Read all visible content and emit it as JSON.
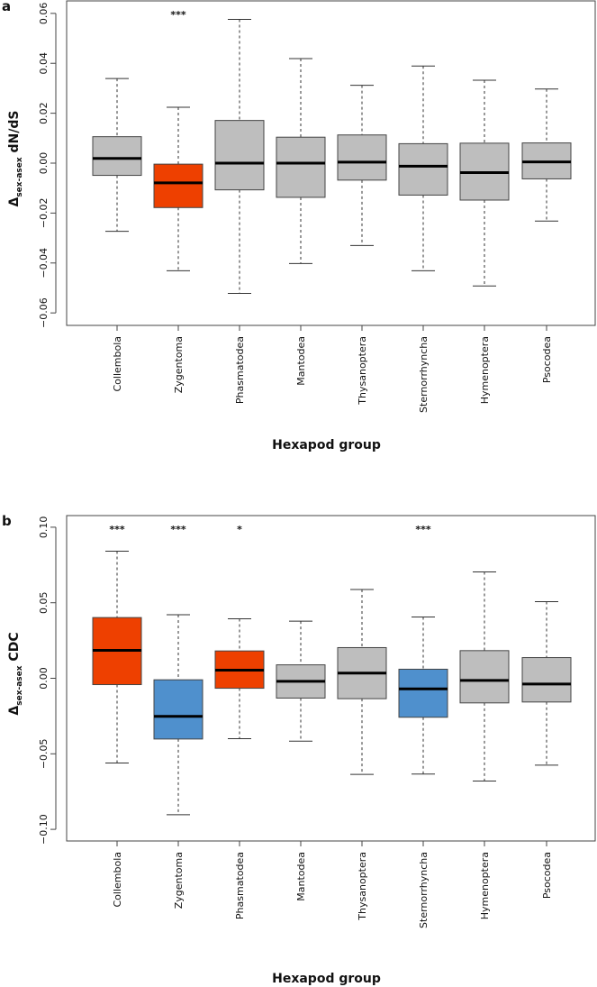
{
  "colors": {
    "gray": "#bebebe",
    "orange": "#ee4000",
    "blue": "#4f90cd"
  },
  "chart_data": [
    {
      "type": "boxplot",
      "panel_label": "a",
      "ylabel_main": "Δ",
      "ylabel_sub": "sex-asex",
      "ylabel_rest": " dN/dS",
      "xlabel": "Hexapod group",
      "ylim": [
        -0.065,
        0.065
      ],
      "yticks": [
        -0.06,
        -0.04,
        -0.02,
        0.0,
        0.02,
        0.04,
        0.06
      ],
      "ytick_labels": [
        "−0.06",
        "−0.04",
        "−0.02",
        "0.00",
        "0.02",
        "0.04",
        "0.06"
      ],
      "categories": [
        "Collembola",
        "Zygentoma",
        "Phasmatodea",
        "Mantodea",
        "Thysanoptera",
        "Sternorrhyncha",
        "Hymenoptera",
        "Psocodea"
      ],
      "boxes": [
        {
          "low": -0.0273,
          "q1": -0.0049,
          "median": 0.0019,
          "q3": 0.0106,
          "high": 0.0339,
          "color": "gray",
          "sig": ""
        },
        {
          "low": -0.0431,
          "q1": -0.0178,
          "median": -0.0079,
          "q3": -0.0004,
          "high": 0.0224,
          "color": "orange",
          "sig": "***"
        },
        {
          "low": -0.0522,
          "q1": -0.0107,
          "median": 0.0,
          "q3": 0.0171,
          "high": 0.0576,
          "color": "gray",
          "sig": ""
        },
        {
          "low": -0.0402,
          "q1": -0.0137,
          "median": 0.0,
          "q3": 0.0104,
          "high": 0.0419,
          "color": "gray",
          "sig": ""
        },
        {
          "low": -0.033,
          "q1": -0.0068,
          "median": 0.0004,
          "q3": 0.0113,
          "high": 0.0312,
          "color": "gray",
          "sig": ""
        },
        {
          "low": -0.0431,
          "q1": -0.0128,
          "median": -0.0012,
          "q3": 0.0078,
          "high": 0.0389,
          "color": "gray",
          "sig": ""
        },
        {
          "low": -0.0492,
          "q1": -0.0148,
          "median": -0.0038,
          "q3": 0.008,
          "high": 0.0332,
          "color": "gray",
          "sig": ""
        },
        {
          "low": -0.0232,
          "q1": -0.0063,
          "median": 0.0005,
          "q3": 0.0081,
          "high": 0.0297,
          "color": "gray",
          "sig": ""
        }
      ]
    },
    {
      "type": "boxplot",
      "panel_label": "b",
      "ylabel_main": "Δ",
      "ylabel_sub": "sex-asex",
      "ylabel_rest": " CDC",
      "xlabel": "Hexapod group",
      "ylim": [
        -0.1077,
        0.1077
      ],
      "yticks": [
        -0.1,
        -0.05,
        0.0,
        0.05,
        0.1
      ],
      "ytick_labels": [
        "−0.10",
        "−0.05",
        "0.00",
        "0.05",
        "0.10"
      ],
      "categories": [
        "Collembola",
        "Zygentoma",
        "Phasmatodea",
        "Mantodea",
        "Thysanoptera",
        "Sternorrhyncha",
        "Hymenoptera",
        "Psocodea"
      ],
      "boxes": [
        {
          "low": -0.0561,
          "q1": -0.0042,
          "median": 0.0185,
          "q3": 0.0402,
          "high": 0.0841,
          "color": "orange",
          "sig": "***"
        },
        {
          "low": -0.0903,
          "q1": -0.0402,
          "median": -0.0252,
          "q3": -0.001,
          "high": 0.0421,
          "color": "blue",
          "sig": "***"
        },
        {
          "low": -0.04,
          "q1": -0.0066,
          "median": 0.0054,
          "q3": 0.0181,
          "high": 0.0394,
          "color": "orange",
          "sig": "*"
        },
        {
          "low": -0.0416,
          "q1": -0.0131,
          "median": -0.002,
          "q3": 0.0089,
          "high": 0.0378,
          "color": "gray",
          "sig": ""
        },
        {
          "low": -0.0636,
          "q1": -0.0135,
          "median": 0.0034,
          "q3": 0.0203,
          "high": 0.0588,
          "color": "gray",
          "sig": ""
        },
        {
          "low": -0.0634,
          "q1": -0.0258,
          "median": -0.007,
          "q3": 0.006,
          "high": 0.0406,
          "color": "blue",
          "sig": "***"
        },
        {
          "low": -0.068,
          "q1": -0.0163,
          "median": -0.0014,
          "q3": 0.0183,
          "high": 0.0704,
          "color": "gray",
          "sig": ""
        },
        {
          "low": -0.0575,
          "q1": -0.0157,
          "median": -0.0038,
          "q3": 0.0137,
          "high": 0.0507,
          "color": "gray",
          "sig": ""
        }
      ]
    }
  ]
}
